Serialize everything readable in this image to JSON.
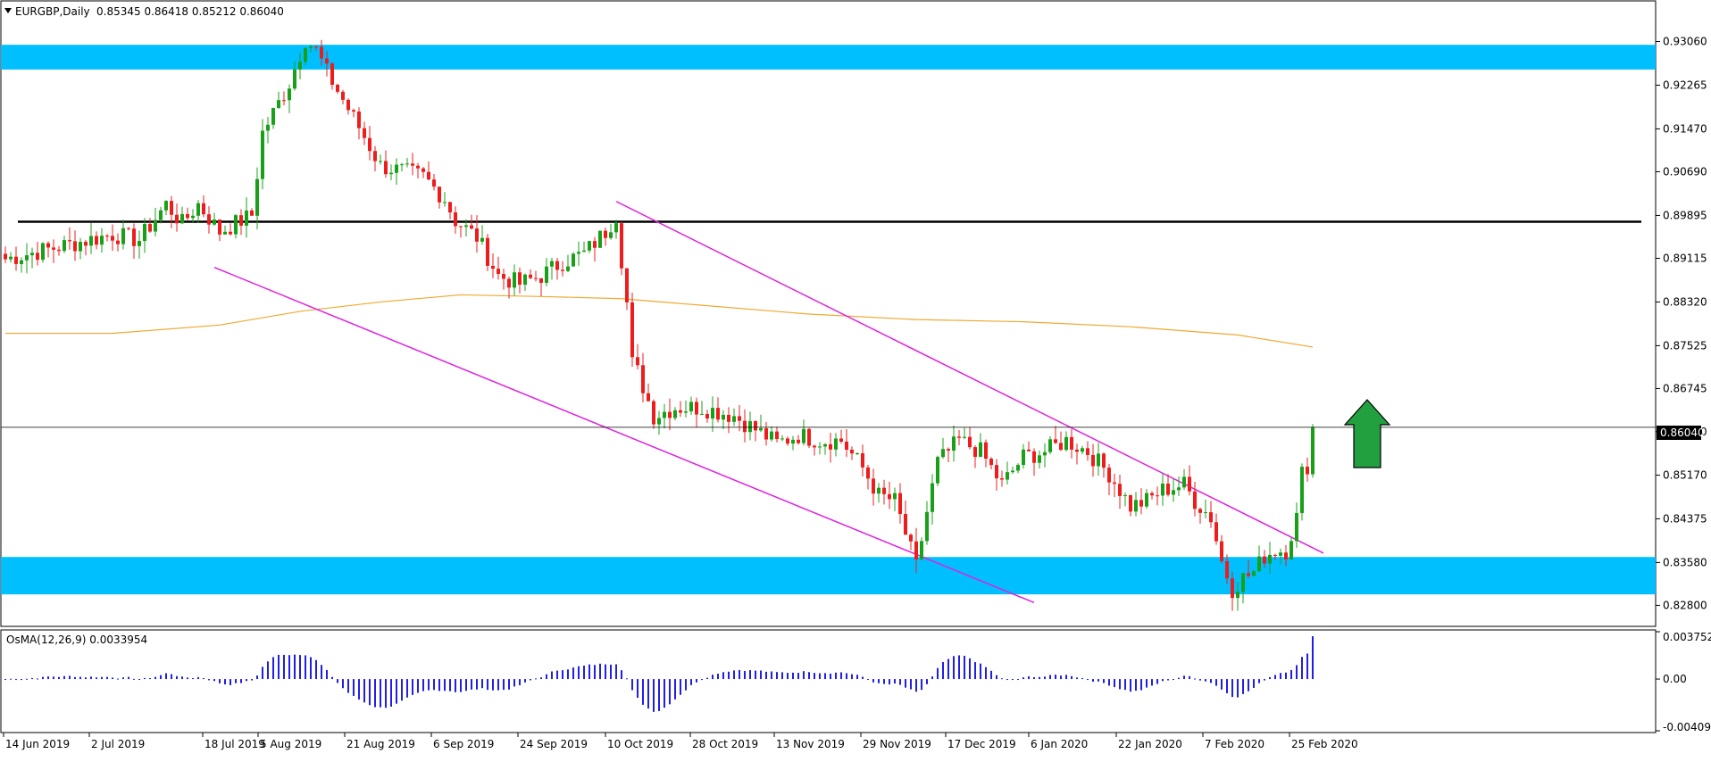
{
  "header": {
    "symbol_label": "EURGBP,Daily",
    "ohlc_label": "0.85345 0.86418 0.85212 0.86040"
  },
  "indicator": {
    "label": "OsMA(12,26,9) 0.0033954"
  },
  "colors": {
    "background": "#ffffff",
    "bull": "#18a018",
    "bear": "#ee1c1c",
    "zone": "#00bfff",
    "channel": "#e020e0",
    "ma": "#f0a830",
    "osma": "#1f1fe6",
    "resistance": "#000000",
    "arrow": "#22a040"
  },
  "chart_data": [
    {
      "type": "candlestick",
      "name": "EURGBP,Daily",
      "ylim": [
        0.8245,
        0.9375
      ],
      "y_ticks": [
        "0.93060",
        "0.92265",
        "0.91470",
        "0.90690",
        "0.89895",
        "0.89115",
        "0.88320",
        "0.87525",
        "0.86745",
        "0.85960",
        "0.85170",
        "0.84375",
        "0.83580",
        "0.82800"
      ],
      "x_labels": [
        "14 Jun 2019",
        "2 Jul 2019",
        "18 Jul 2019",
        "5 Aug 2019",
        "21 Aug 2019",
        "6 Sep 2019",
        "24 Sep 2019",
        "10 Oct 2019",
        "28 Oct 2019",
        "13 Nov 2019",
        "29 Nov 2019",
        "17 Dec 2019",
        "6 Jan 2020",
        "22 Jan 2020",
        "7 Feb 2020",
        "25 Feb 2020"
      ],
      "last_price": "0.86040",
      "last_close": 0.8604,
      "bars": 196,
      "path": [
        [
          0,
          0.891
        ],
        [
          20,
          0.8955
        ],
        [
          25,
          0.8945
        ],
        [
          30,
          0.901
        ],
        [
          33,
          0.8975
        ],
        [
          36,
          0.901
        ],
        [
          40,
          0.896
        ],
        [
          46,
          0.899
        ],
        [
          48,
          0.914
        ],
        [
          53,
          0.923
        ],
        [
          56,
          0.931
        ],
        [
          58,
          0.929
        ],
        [
          60,
          0.925
        ],
        [
          66,
          0.915
        ],
        [
          70,
          0.908
        ],
        [
          74,
          0.907
        ],
        [
          78,
          0.906
        ],
        [
          82,
          0.902
        ],
        [
          84,
          0.898
        ],
        [
          88,
          0.895
        ],
        [
          92,
          0.888
        ],
        [
          96,
          0.8865
        ],
        [
          100,
          0.888
        ],
        [
          104,
          0.8905
        ],
        [
          108,
          0.892
        ],
        [
          112,
          0.896
        ],
        [
          114,
          0.899
        ],
        [
          116,
          0.883
        ],
        [
          117,
          0.872
        ],
        [
          118,
          0.8705
        ],
        [
          121,
          0.8625
        ],
        [
          125,
          0.864
        ],
        [
          130,
          0.864
        ],
        [
          136,
          0.8625
        ],
        [
          140,
          0.86
        ],
        [
          144,
          0.8575
        ],
        [
          148,
          0.859
        ],
        [
          152,
          0.858
        ],
        [
          156,
          0.858
        ],
        [
          160,
          0.853
        ],
        [
          163,
          0.848
        ],
        [
          166,
          0.847
        ],
        [
          170,
          0.835
        ],
        [
          172,
          0.845
        ],
        [
          174,
          0.854
        ],
        [
          178,
          0.858
        ],
        [
          182,
          0.856
        ],
        [
          186,
          0.85
        ],
        [
          190,
          0.855
        ],
        [
          194,
          0.856
        ],
        [
          198,
          0.858
        ],
        [
          202,
          0.856
        ],
        [
          206,
          0.852
        ],
        [
          210,
          0.846
        ],
        [
          213,
          0.847
        ],
        [
          216,
          0.849
        ],
        [
          220,
          0.85
        ],
        [
          222,
          0.847
        ],
        [
          225,
          0.844
        ],
        [
          227,
          0.836
        ],
        [
          229,
          0.831
        ],
        [
          231,
          0.833
        ],
        [
          233,
          0.834
        ],
        [
          235,
          0.837
        ],
        [
          237,
          0.838
        ],
        [
          239,
          0.838
        ],
        [
          241,
          0.844
        ],
        [
          242,
          0.852
        ],
        [
          243,
          0.8535
        ],
        [
          244,
          0.8604
        ]
      ],
      "ma_points": [
        [
          0,
          0.8775
        ],
        [
          20,
          0.8775
        ],
        [
          40,
          0.879
        ],
        [
          55,
          0.8815
        ],
        [
          70,
          0.8832
        ],
        [
          85,
          0.8845
        ],
        [
          100,
          0.8842
        ],
        [
          115,
          0.8838
        ],
        [
          130,
          0.8826
        ],
        [
          150,
          0.881
        ],
        [
          170,
          0.88
        ],
        [
          190,
          0.8796
        ],
        [
          210,
          0.8787
        ],
        [
          230,
          0.8772
        ],
        [
          244,
          0.875
        ]
      ],
      "channel_upper": [
        [
          114,
          0.9015
        ],
        [
          246,
          0.8375
        ]
      ],
      "channel_lower": [
        [
          39,
          0.8895
        ],
        [
          192,
          0.8285
        ]
      ],
      "resistance_level": 0.8978,
      "zones": [
        [
          0.9255,
          0.93
        ],
        [
          0.83,
          0.8368
        ]
      ]
    },
    {
      "type": "bar",
      "name": "OsMA(12,26,9)",
      "ylim": [
        -0.004097,
        0.003752
      ],
      "y_ticks": [
        "0.0037521",
        "0.00",
        "-0.004097"
      ],
      "last_value": 0.0033954
    }
  ]
}
